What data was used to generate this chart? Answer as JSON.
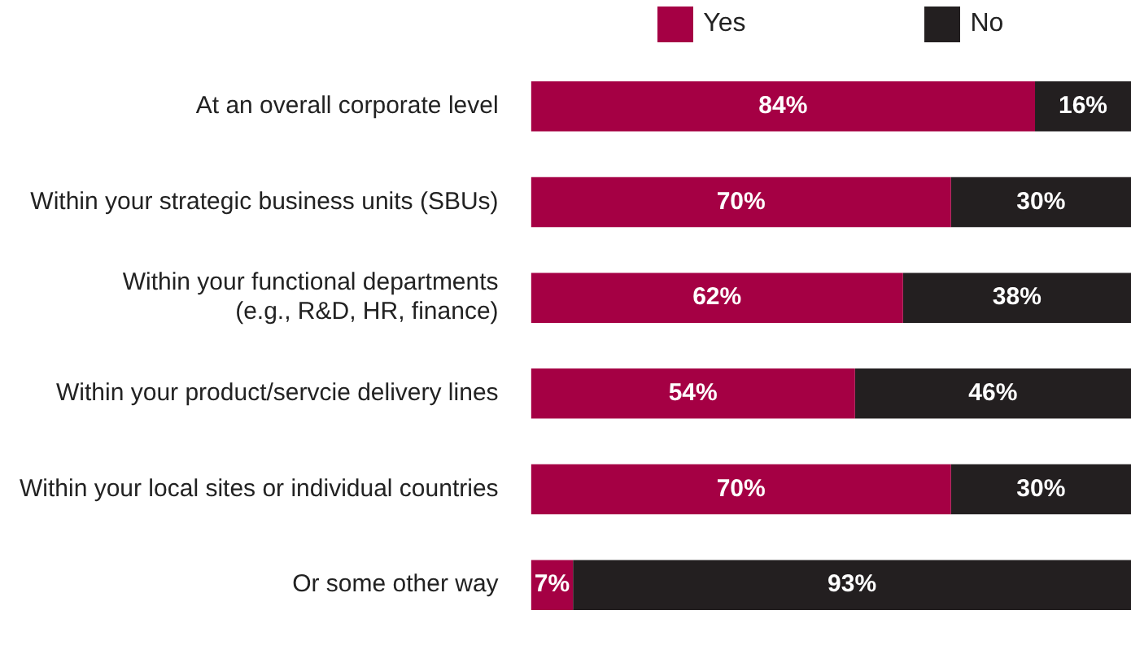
{
  "chart_data": {
    "type": "bar",
    "orientation": "horizontal",
    "stacked": true,
    "categories": [
      "At an overall corporate level",
      "Within your strategic business units (SBUs)",
      "Within your functional departments\n(e.g., R&D, HR, finance)",
      "Within your product/servcie delivery lines",
      "Within your local sites or individual countries",
      "Or some other way"
    ],
    "series": [
      {
        "name": "Yes",
        "color": "#a50044",
        "values": [
          84,
          70,
          62,
          54,
          70,
          7
        ],
        "value_labels": [
          "84%",
          "70%",
          "62%",
          "54%",
          "70%",
          "7%"
        ]
      },
      {
        "name": "No",
        "color": "#231f20",
        "values": [
          16,
          30,
          38,
          46,
          30,
          93
        ],
        "value_labels": [
          "16%",
          "30%",
          "38%",
          "46%",
          "30%",
          "93%"
        ]
      }
    ],
    "xlim": [
      0,
      100
    ],
    "tick_labels": "y",
    "legend": "top"
  }
}
